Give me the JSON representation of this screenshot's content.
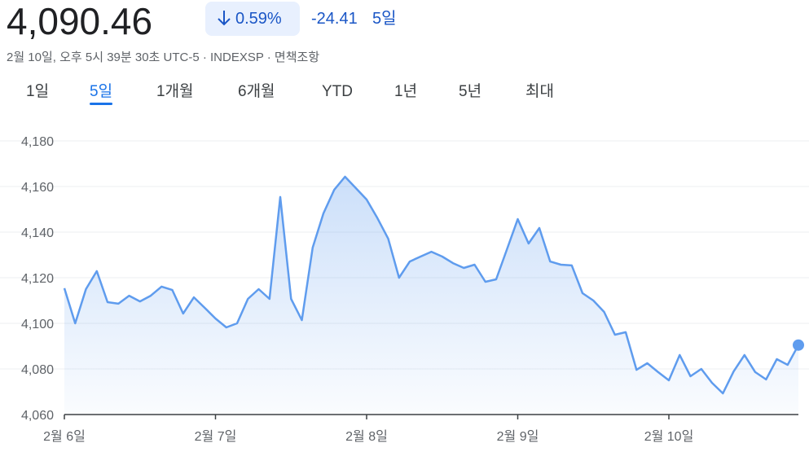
{
  "header": {
    "price": "4,090.46",
    "change_percent": "0.59%",
    "change": "-24.41",
    "period": "5일",
    "timestamp": "2월 10일, 오후 5시 39분 30초 UTC-5 · INDEXSP · ",
    "disclaimer": "면책조항"
  },
  "tabs": [
    {
      "label": "1일"
    },
    {
      "label": "5일",
      "selected": true
    },
    {
      "label": "1개월"
    },
    {
      "label": "6개월"
    },
    {
      "label": "YTD"
    },
    {
      "label": "1년"
    },
    {
      "label": "5년"
    },
    {
      "label": "최대"
    }
  ],
  "chart_data": {
    "type": "area",
    "color": "#5f9cee",
    "grid": true,
    "categories": [
      "2월 6일",
      null,
      null,
      null,
      null,
      null,
      null,
      null,
      null,
      null,
      null,
      null,
      null,
      null,
      "2월 7일",
      null,
      null,
      null,
      null,
      null,
      null,
      null,
      null,
      null,
      null,
      null,
      null,
      null,
      "2월 8일",
      null,
      null,
      null,
      null,
      null,
      null,
      null,
      null,
      null,
      null,
      null,
      null,
      null,
      "2월 9일",
      null,
      null,
      null,
      null,
      null,
      null,
      null,
      null,
      null,
      null,
      null,
      null,
      null,
      "2월 10일",
      null,
      null,
      null,
      null,
      null,
      null,
      null,
      null,
      null,
      null,
      null,
      null
    ],
    "values": [
      4115.4,
      4100,
      4115,
      4122.9,
      4109.3,
      4108.6,
      4112.1,
      4109.6,
      4112.1,
      4116.1,
      4114.6,
      4104.3,
      4111.4,
      4106.8,
      4102.1,
      4098.2,
      4100,
      4110.7,
      4115,
      4110.7,
      4155.4,
      4110.7,
      4101.4,
      4133.2,
      4148.2,
      4158.6,
      4164.3,
      4159.3,
      4154.3,
      4146.1,
      4137.1,
      4120,
      4127.1,
      4129.3,
      4131.4,
      4129.3,
      4126.4,
      4124.3,
      4125.7,
      4118.2,
      4119.3,
      4132.5,
      4145.7,
      4135,
      4141.8,
      4127.1,
      4125.7,
      4125.4,
      4113.2,
      4110,
      4105,
      4095,
      4096.1,
      4079.6,
      4082.5,
      4078.6,
      4075,
      4086.1,
      4076.8,
      4080,
      4073.9,
      4069.3,
      4078.9,
      4086.1,
      4078.6,
      4075.4,
      4084.3,
      4081.8,
      4090.46
    ],
    "ylim": [
      4060,
      4180
    ],
    "yticks": [
      {
        "value": 4060,
        "label": "4,060"
      },
      {
        "value": 4080,
        "label": "4,080"
      },
      {
        "value": 4100,
        "label": "4,100"
      },
      {
        "value": 4120,
        "label": "4,120"
      },
      {
        "value": 4140,
        "label": "4,140"
      },
      {
        "value": 4160,
        "label": "4,160"
      },
      {
        "value": 4180,
        "label": "4,180"
      }
    ]
  }
}
